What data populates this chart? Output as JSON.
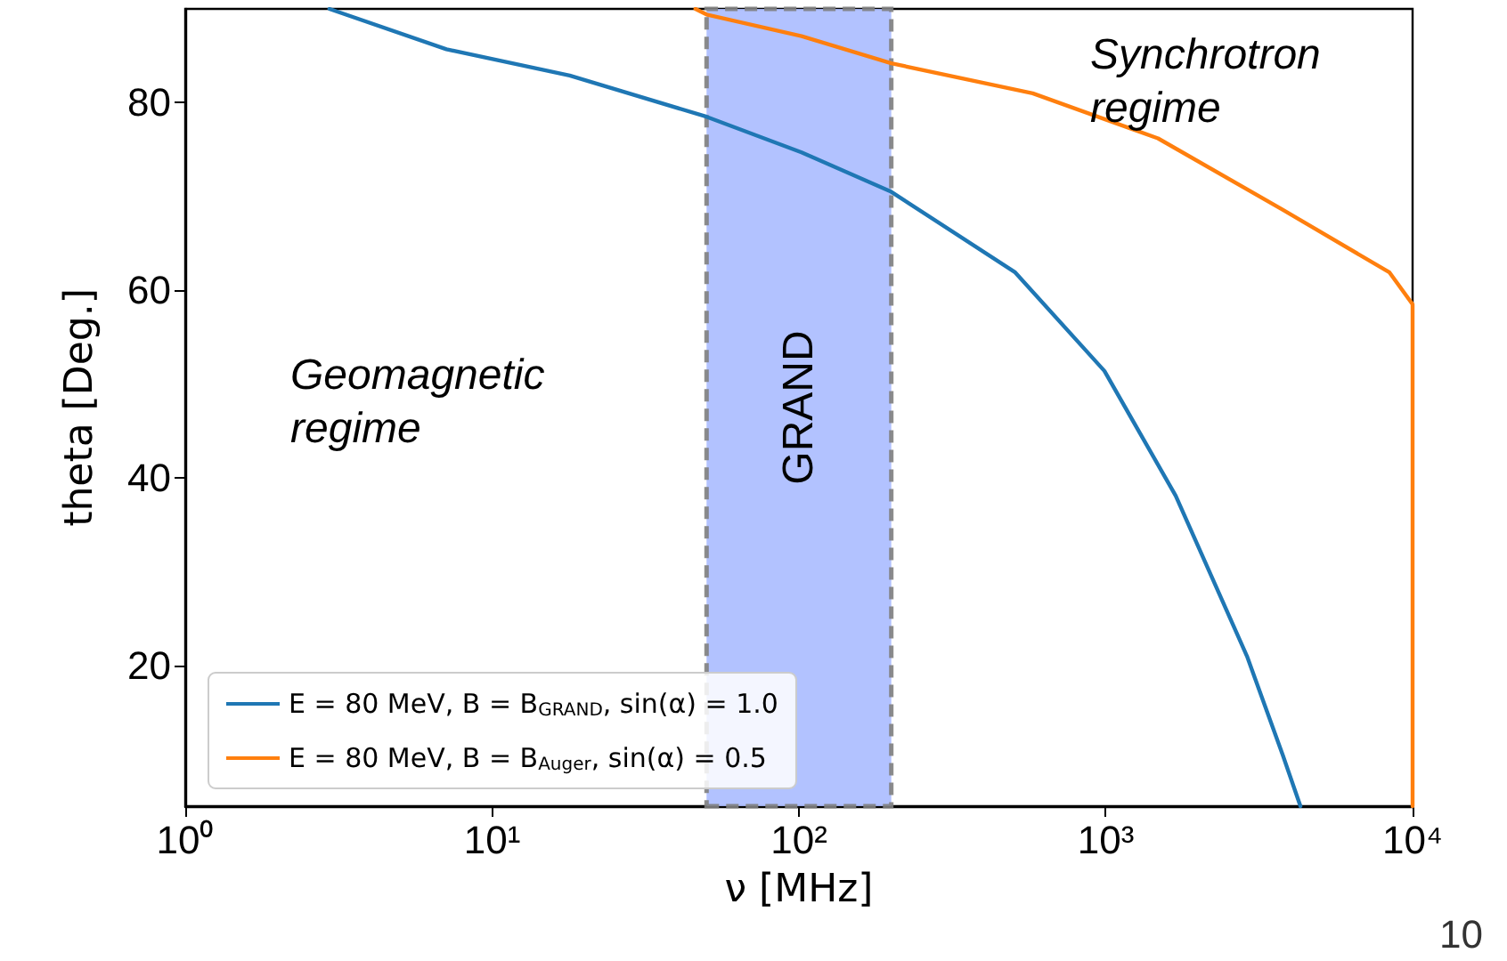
{
  "chart_data": {
    "type": "line",
    "xlabel": "ν [MHz]",
    "ylabel": "theta [Deg.]",
    "log": "x",
    "xlim": [
      1,
      10000
    ],
    "xticks": [
      {
        "value": 1,
        "label": "10⁰"
      },
      {
        "value": 10,
        "label": "10¹"
      },
      {
        "value": 100,
        "label": "10²"
      },
      {
        "value": 1000,
        "label": "10³"
      },
      {
        "value": 10000,
        "label": "10⁴"
      }
    ],
    "ylim": [
      5,
      90
    ],
    "yticks": [
      20,
      40,
      60,
      80
    ],
    "grid": false,
    "legend": "bottom left",
    "marker": "none",
    "line_style": "solid",
    "series": [
      {
        "name": "E = 80 MeV, B = B$_{GRAND}$, sin(α) = 1.0",
        "color": "#1f77b4",
        "x": [
          2.95,
          7.1,
          17.9,
          50,
          102,
          200,
          507,
          990,
          1690,
          2885,
          3770,
          4310
        ],
        "values": [
          90,
          85.7,
          82.9,
          78.5,
          74.7,
          70.5,
          61.9,
          51.4,
          38.1,
          21,
          10.5,
          5
        ]
      },
      {
        "name": "E = 80 MeV, B = B$_{Auger}$, sin(α) = 0.5",
        "color": "#ff7f0e",
        "x": [
          46,
          50,
          102,
          200,
          578,
          1480,
          3770,
          8410,
          10000,
          10000
        ],
        "values": [
          90,
          89.4,
          87.1,
          84.2,
          81,
          76.2,
          68.6,
          61.9,
          58.5,
          5
        ]
      }
    ],
    "bands": [
      {
        "axis": "x",
        "from": 50,
        "to": 200,
        "label": "GRAND",
        "color": "#aabbff"
      }
    ],
    "annotations": [
      "Geomagnetic regime",
      "Synchrotron regime",
      "10"
    ]
  }
}
